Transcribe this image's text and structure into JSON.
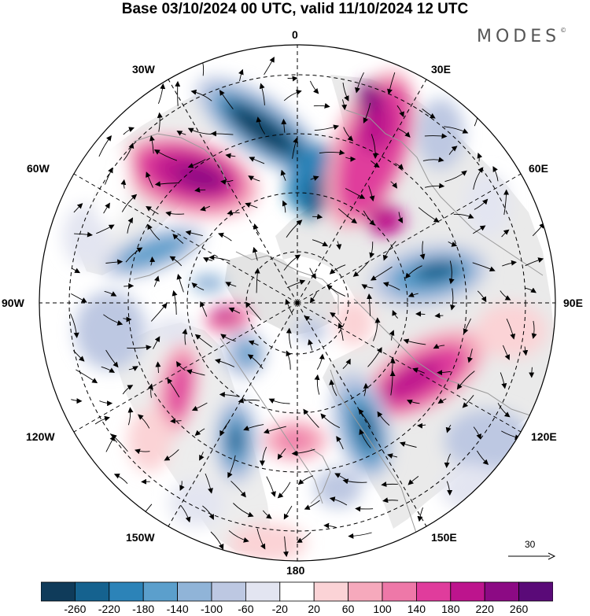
{
  "title": "Base 03/10/2024 00 UTC, valid 11/10/2024 12 UTC",
  "brand": {
    "name": "MODES",
    "mark": "©"
  },
  "map": {
    "projection": "north-polar-stereographic",
    "meridian_labels": [
      {
        "id": "0",
        "text": "0"
      },
      {
        "id": "30e",
        "text": "30E"
      },
      {
        "id": "60e",
        "text": "60E"
      },
      {
        "id": "90e",
        "text": "90E"
      },
      {
        "id": "120e",
        "text": "120E"
      },
      {
        "id": "150e",
        "text": "150E"
      },
      {
        "id": "180",
        "text": "180"
      },
      {
        "id": "150w",
        "text": "150W"
      },
      {
        "id": "120w",
        "text": "120W"
      },
      {
        "id": "90w",
        "text": "90W"
      },
      {
        "id": "60w",
        "text": "60W"
      },
      {
        "id": "30w",
        "text": "30W"
      }
    ],
    "colors": {
      "land_shade": "#d8d8d8",
      "coastline": "#9a9a9a",
      "grid": "#000000",
      "vector": "#000000"
    }
  },
  "reference_vector": {
    "label": "30",
    "icon": "arrow-right-icon"
  },
  "legend": {
    "boundaries": [
      "-260",
      "-220",
      "-180",
      "-140",
      "-100",
      "-60",
      "-20",
      "20",
      "60",
      "100",
      "140",
      "180",
      "220",
      "260"
    ],
    "colors": [
      "#0f3b5a",
      "#15628f",
      "#2c83b8",
      "#5b9fcc",
      "#90b4d8",
      "#bdc8e2",
      "#e3e5f1",
      "#ffffff",
      "#fbd3d6",
      "#f6a9bc",
      "#ee78a8",
      "#e03c9c",
      "#bd148d",
      "#8c0a84",
      "#5a0a78"
    ]
  }
}
